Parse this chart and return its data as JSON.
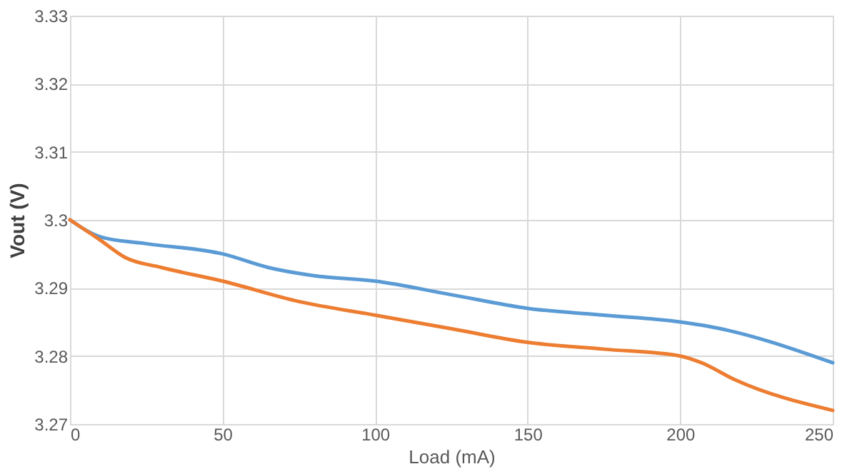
{
  "chart_data": {
    "type": "line",
    "xlabel": "Load (mA)",
    "ylabel": "Vout (V)",
    "xlim": [
      0,
      250
    ],
    "xticks": [
      0,
      50,
      100,
      150,
      200,
      250
    ],
    "ylim": [
      3.27,
      3.33
    ],
    "yticks": [
      3.27,
      3.28,
      3.29,
      3.3,
      3.31,
      3.32,
      3.33
    ],
    "grid": true,
    "marker": "none",
    "line_style": "solid",
    "series": [
      {
        "color": "#5b9bd5",
        "x": [
          0,
          10,
          25,
          50,
          65,
          80,
          100,
          125,
          150,
          175,
          200,
          210,
          250
        ],
        "values": [
          3.3,
          3.2975,
          3.2965,
          3.295,
          3.293,
          3.2918,
          3.291,
          3.289,
          3.287,
          3.286,
          3.285,
          3.2843,
          3.279
        ]
      },
      {
        "color": "#ed7d31",
        "x": [
          0,
          10,
          18,
          30,
          50,
          75,
          100,
          125,
          150,
          175,
          200,
          207,
          218,
          250
        ],
        "values": [
          3.3,
          3.297,
          3.2945,
          3.293,
          3.291,
          3.288,
          3.286,
          3.284,
          3.282,
          3.281,
          3.28,
          3.279,
          3.2765,
          3.272
        ]
      }
    ]
  }
}
